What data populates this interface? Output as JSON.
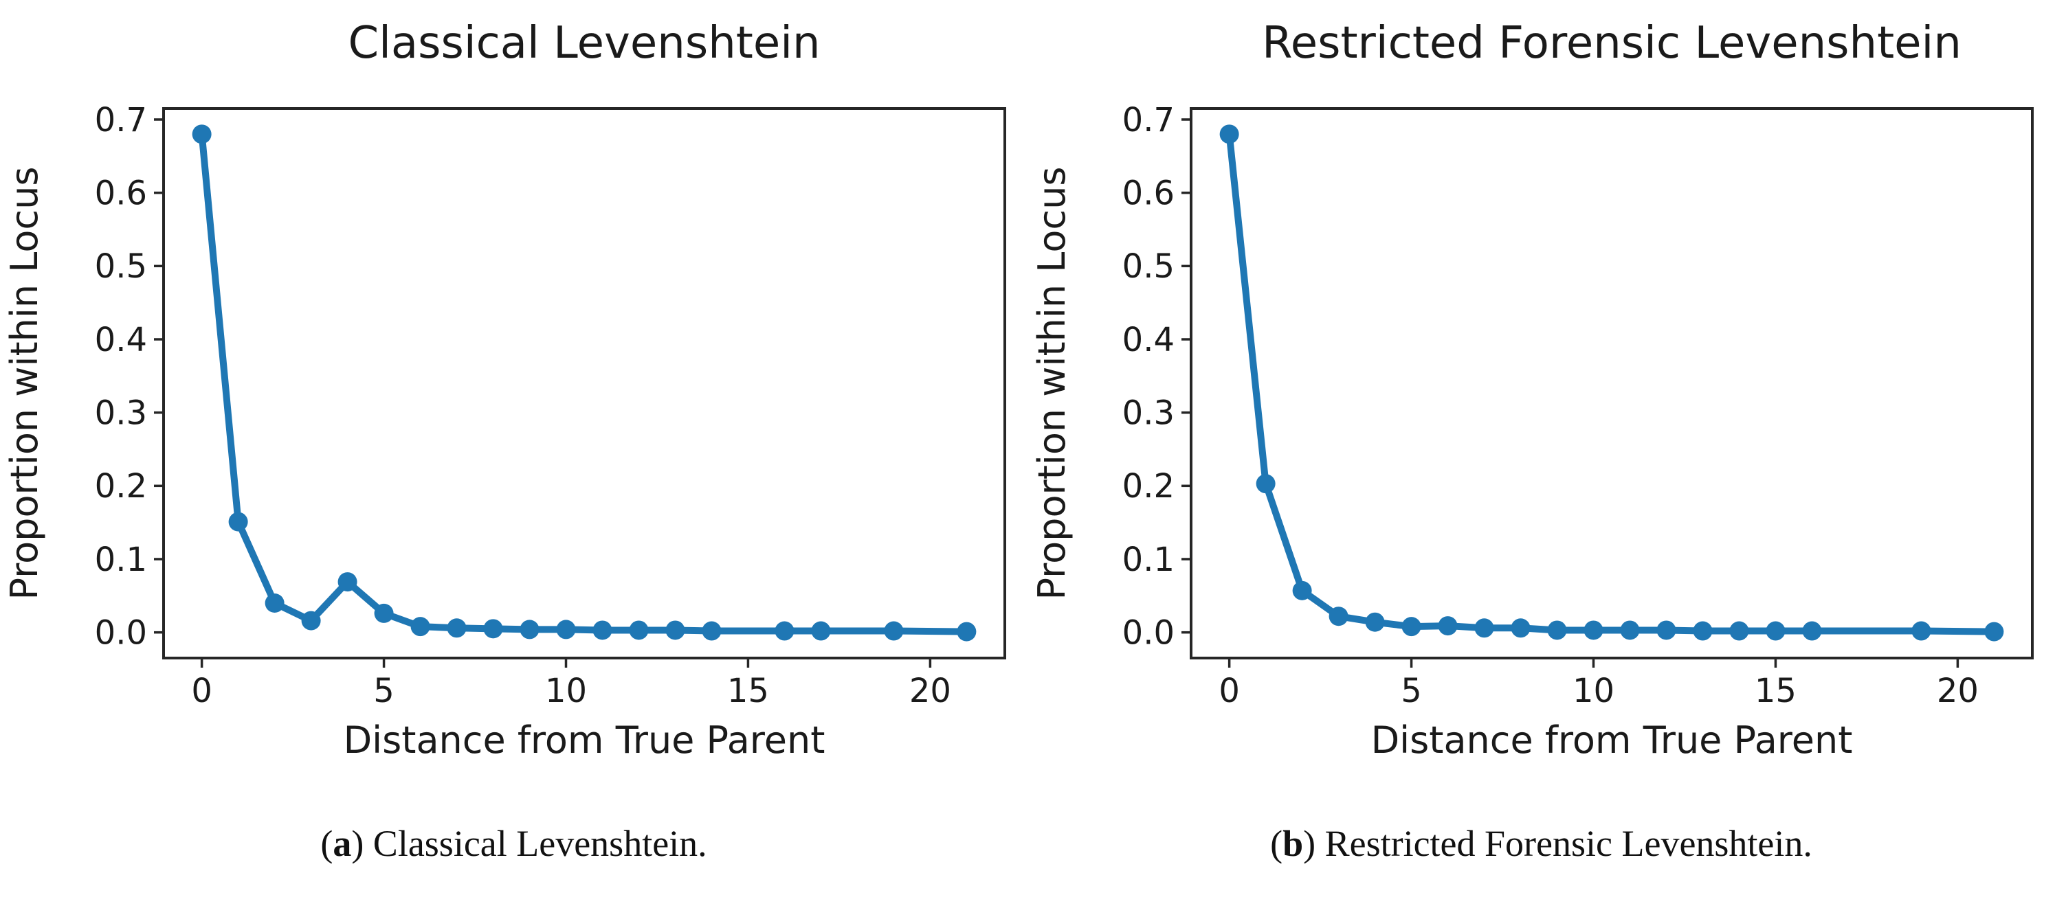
{
  "page": {
    "background": "#ffffff"
  },
  "colors": {
    "line": "#1f77b4",
    "marker": "#1f77b4",
    "spine": "#262626",
    "tick": "#262626",
    "text": "#1a1a1a"
  },
  "chart_data": [
    {
      "id": "classical-levenshtein",
      "type": "line",
      "title": "Classical Levenshtein",
      "xlabel": "Distance from True Parent",
      "ylabel": "Proportion within Locus",
      "xlim": [
        -1.05,
        22.05
      ],
      "ylim": [
        -0.035,
        0.715
      ],
      "xticks": [
        0,
        5,
        10,
        15,
        20
      ],
      "yticks": [
        0.0,
        0.1,
        0.2,
        0.3,
        0.4,
        0.5,
        0.6,
        0.7
      ],
      "grid": false,
      "legend": null,
      "x": [
        0,
        1,
        2,
        3,
        4,
        5,
        6,
        7,
        8,
        9,
        10,
        11,
        12,
        13,
        14,
        16,
        17,
        19,
        21
      ],
      "y": [
        0.68,
        0.151,
        0.04,
        0.016,
        0.069,
        0.026,
        0.008,
        0.006,
        0.005,
        0.004,
        0.004,
        0.003,
        0.003,
        0.003,
        0.002,
        0.002,
        0.002,
        0.002,
        0.001
      ]
    },
    {
      "id": "restricted-forensic-levenshtein",
      "type": "line",
      "title": "Restricted Forensic Levenshtein",
      "xlabel": "Distance from True Parent",
      "ylabel": "Proportion within Locus",
      "xlim": [
        -1.05,
        22.05
      ],
      "ylim": [
        -0.035,
        0.715
      ],
      "xticks": [
        0,
        5,
        10,
        15,
        20
      ],
      "yticks": [
        0.0,
        0.1,
        0.2,
        0.3,
        0.4,
        0.5,
        0.6,
        0.7
      ],
      "grid": false,
      "legend": null,
      "x": [
        0,
        1,
        2,
        3,
        4,
        5,
        6,
        7,
        8,
        9,
        10,
        11,
        12,
        13,
        14,
        15,
        16,
        19,
        21
      ],
      "y": [
        0.68,
        0.203,
        0.057,
        0.022,
        0.014,
        0.008,
        0.009,
        0.006,
        0.006,
        0.003,
        0.003,
        0.003,
        0.003,
        0.002,
        0.002,
        0.002,
        0.002,
        0.002,
        0.001
      ]
    }
  ],
  "captions": {
    "a": {
      "open": "(",
      "letter": "a",
      "close": ") ",
      "text": "Classical Levenshtein."
    },
    "b": {
      "open": "(",
      "letter": "b",
      "close": ") ",
      "text": "Restricted Forensic Levenshtein."
    }
  }
}
